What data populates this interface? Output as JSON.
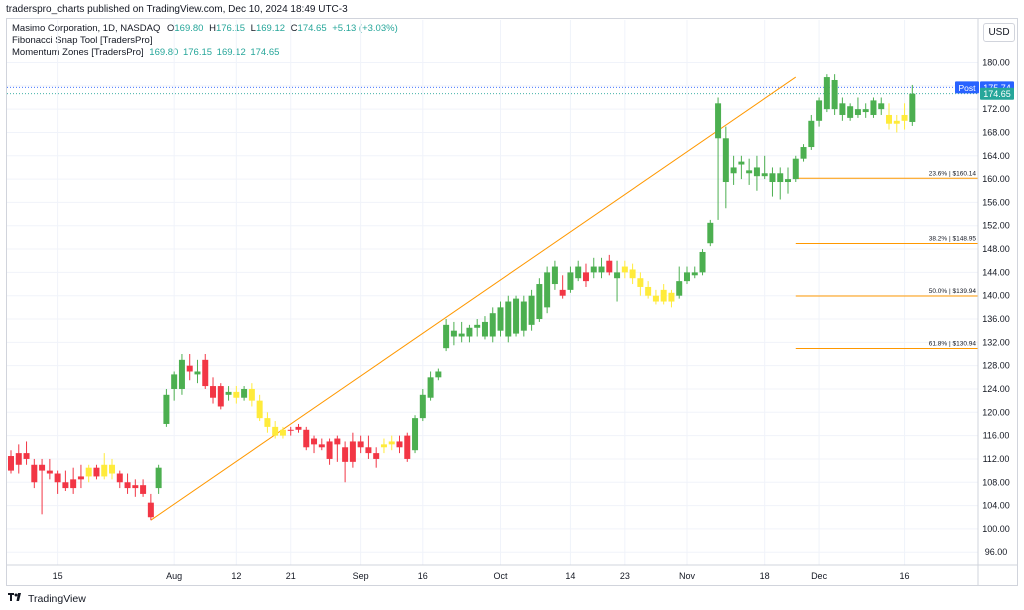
{
  "header": {
    "publish_text": "traderspro_charts published on TradingView.com, Dec 10, 2024 18:49 UTC-3"
  },
  "legend": {
    "symbol_line": "Masimo Corporation, 1D, NASDAQ",
    "o_label": "O",
    "o_value": "169.80",
    "h_label": "H",
    "h_value": "176.15",
    "l_label": "L",
    "l_value": "169.12",
    "c_label": "C",
    "c_value": "174.65",
    "change": "+5.13 (+3.03%)",
    "indicator1": "Fibonacci Snap Tool [TradersPro]",
    "indicator2": "Momentum Zones [TradersPro]",
    "indicator2_values": "169.80  176.15  169.12  174.65"
  },
  "currency": "USD",
  "footer": {
    "brand": "TradingView",
    "logo": "tradingview-logo"
  },
  "colors": {
    "up": "#4caf50",
    "down": "#f23645",
    "neutral": "#ffeb3b",
    "fib": "#ff9800",
    "post_bg": "#2962ff",
    "last_bg": "#26a69a"
  },
  "chart_data": {
    "type": "candlestick",
    "title": "Masimo Corporation, 1D, NASDAQ",
    "ylim": [
      94,
      184
    ],
    "y_ticks": [
      96,
      100,
      104,
      108,
      112,
      116,
      120,
      124,
      128,
      132,
      136,
      140,
      144,
      148,
      152,
      156,
      160,
      164,
      168,
      172,
      176,
      180
    ],
    "x_ticks": [
      "15",
      "Aug",
      "12",
      "21",
      "Sep",
      "16",
      "Oct",
      "14",
      "23",
      "Nov",
      "18",
      "Dec",
      "16"
    ],
    "x_tick_index": [
      6,
      21,
      29,
      36,
      45,
      53,
      63,
      72,
      79,
      87,
      97,
      104,
      115
    ],
    "price_labels": [
      {
        "label": "Post",
        "value": "175.74",
        "price": 175.74,
        "color": "#2962ff"
      },
      {
        "label": "",
        "value": "174.65",
        "price": 174.65,
        "color": "#26a69a"
      }
    ],
    "trend_line": {
      "from": {
        "i": 18,
        "price": 101.5
      },
      "to": {
        "i": 101,
        "price": 177.5
      }
    },
    "fib_levels": [
      {
        "label": "23.6% | $160.14",
        "price": 160.14
      },
      {
        "label": "38.2% | $148.95",
        "price": 148.95
      },
      {
        "label": "50.0% | $139.94",
        "price": 139.94
      },
      {
        "label": "61.8% | $130.94",
        "price": 130.94
      }
    ],
    "fib_start_index": 101,
    "candles": [
      {
        "o": 112.5,
        "h": 113.5,
        "l": 109.5,
        "c": 110,
        "z": "r"
      },
      {
        "o": 111,
        "h": 114.5,
        "l": 109.5,
        "c": 113,
        "z": "r"
      },
      {
        "o": 113,
        "h": 115,
        "l": 111,
        "c": 112,
        "z": "r"
      },
      {
        "o": 111,
        "h": 112,
        "l": 107,
        "c": 108,
        "z": "r"
      },
      {
        "o": 111,
        "h": 112,
        "l": 102.5,
        "c": 110,
        "z": "r"
      },
      {
        "o": 110,
        "h": 112,
        "l": 108.5,
        "c": 109.5,
        "z": "r"
      },
      {
        "o": 109.5,
        "h": 110,
        "l": 106,
        "c": 108,
        "z": "r"
      },
      {
        "o": 108,
        "h": 110,
        "l": 106.5,
        "c": 107,
        "z": "r"
      },
      {
        "o": 107,
        "h": 110.5,
        "l": 106,
        "c": 108.5,
        "z": "r"
      },
      {
        "o": 108.5,
        "h": 111,
        "l": 107,
        "c": 109,
        "z": "r"
      },
      {
        "o": 109,
        "h": 111,
        "l": 108,
        "c": 110.5,
        "z": "y"
      },
      {
        "o": 110.5,
        "h": 111,
        "l": 108.5,
        "c": 109,
        "z": "r"
      },
      {
        "o": 109,
        "h": 113,
        "l": 108.5,
        "c": 111,
        "z": "y"
      },
      {
        "o": 111,
        "h": 112,
        "l": 108.5,
        "c": 109.5,
        "z": "y"
      },
      {
        "o": 109.5,
        "h": 110,
        "l": 107,
        "c": 108,
        "z": "r"
      },
      {
        "o": 108,
        "h": 109.5,
        "l": 106,
        "c": 107,
        "z": "r"
      },
      {
        "o": 107,
        "h": 108.5,
        "l": 105.5,
        "c": 107.5,
        "z": "r"
      },
      {
        "o": 107.5,
        "h": 108.5,
        "l": 105.5,
        "c": 106,
        "z": "r"
      },
      {
        "o": 104.5,
        "h": 106,
        "l": 101.5,
        "c": 102,
        "z": "r"
      },
      {
        "o": 107,
        "h": 111,
        "l": 106,
        "c": 110.5,
        "z": "g"
      },
      {
        "o": 118,
        "h": 124,
        "l": 117.5,
        "c": 123,
        "z": "g"
      },
      {
        "o": 124,
        "h": 127,
        "l": 122,
        "c": 126.5,
        "z": "g"
      },
      {
        "o": 124,
        "h": 130,
        "l": 123,
        "c": 129,
        "z": "g"
      },
      {
        "o": 128,
        "h": 130,
        "l": 125.5,
        "c": 127,
        "z": "r"
      },
      {
        "o": 127,
        "h": 129,
        "l": 125,
        "c": 126.5,
        "z": "g"
      },
      {
        "o": 129,
        "h": 130,
        "l": 124,
        "c": 124.5,
        "z": "r"
      },
      {
        "o": 124.5,
        "h": 126,
        "l": 121.5,
        "c": 122.5,
        "z": "r"
      },
      {
        "o": 124.5,
        "h": 125,
        "l": 120.5,
        "c": 121,
        "z": "r"
      },
      {
        "o": 123,
        "h": 124.5,
        "l": 122,
        "c": 123.5,
        "z": "g"
      },
      {
        "o": 123.5,
        "h": 124.5,
        "l": 121.5,
        "c": 122.5,
        "z": "y"
      },
      {
        "o": 122.5,
        "h": 124.5,
        "l": 122,
        "c": 124,
        "z": "g"
      },
      {
        "o": 124,
        "h": 125,
        "l": 121,
        "c": 122,
        "z": "y"
      },
      {
        "o": 122,
        "h": 123,
        "l": 118.5,
        "c": 119,
        "z": "y"
      },
      {
        "o": 119,
        "h": 120,
        "l": 116.5,
        "c": 117.5,
        "z": "y"
      },
      {
        "o": 117.5,
        "h": 118.5,
        "l": 115.5,
        "c": 116,
        "z": "y"
      },
      {
        "o": 116,
        "h": 117.5,
        "l": 115.5,
        "c": 117,
        "z": "y"
      },
      {
        "o": 117,
        "h": 117.5,
        "l": 116,
        "c": 117,
        "z": "r"
      },
      {
        "o": 117,
        "h": 118,
        "l": 116.5,
        "c": 117.5,
        "z": "r"
      },
      {
        "o": 117,
        "h": 117.5,
        "l": 113.5,
        "c": 114,
        "z": "r"
      },
      {
        "o": 115.5,
        "h": 116,
        "l": 113,
        "c": 114.5,
        "z": "r"
      },
      {
        "o": 114.5,
        "h": 115.5,
        "l": 113.5,
        "c": 114,
        "z": "r"
      },
      {
        "o": 115,
        "h": 115.5,
        "l": 111,
        "c": 112,
        "z": "r"
      },
      {
        "o": 115.5,
        "h": 116,
        "l": 111.5,
        "c": 114.5,
        "z": "r"
      },
      {
        "o": 114,
        "h": 115,
        "l": 108,
        "c": 111.5,
        "z": "r"
      },
      {
        "o": 115,
        "h": 116.5,
        "l": 110.5,
        "c": 111.5,
        "z": "r"
      },
      {
        "o": 115,
        "h": 116,
        "l": 113,
        "c": 114,
        "z": "r"
      },
      {
        "o": 114,
        "h": 116,
        "l": 112,
        "c": 113,
        "z": "r"
      },
      {
        "o": 113,
        "h": 114,
        "l": 110.5,
        "c": 112,
        "z": "r"
      },
      {
        "o": 114,
        "h": 115.5,
        "l": 113,
        "c": 114.5,
        "z": "y"
      },
      {
        "o": 114.5,
        "h": 116,
        "l": 113.5,
        "c": 115,
        "z": "y"
      },
      {
        "o": 115,
        "h": 116,
        "l": 113,
        "c": 114,
        "z": "r"
      },
      {
        "o": 116,
        "h": 116.5,
        "l": 111.5,
        "c": 112,
        "z": "r"
      },
      {
        "o": 113.5,
        "h": 119.5,
        "l": 113,
        "c": 119,
        "z": "g"
      },
      {
        "o": 119,
        "h": 124,
        "l": 118.5,
        "c": 123,
        "z": "g"
      },
      {
        "o": 122.5,
        "h": 127,
        "l": 122,
        "c": 126,
        "z": "g"
      },
      {
        "o": 126,
        "h": 127.5,
        "l": 125.5,
        "c": 127,
        "z": "g"
      },
      {
        "o": 131,
        "h": 136,
        "l": 130.5,
        "c": 135,
        "z": "g"
      },
      {
        "o": 133,
        "h": 135.5,
        "l": 131.5,
        "c": 134,
        "z": "g"
      },
      {
        "o": 133,
        "h": 135.5,
        "l": 132,
        "c": 133.5,
        "z": "g"
      },
      {
        "o": 133,
        "h": 135,
        "l": 132,
        "c": 134.5,
        "z": "g"
      },
      {
        "o": 134.5,
        "h": 136,
        "l": 133,
        "c": 135,
        "z": "g"
      },
      {
        "o": 133,
        "h": 136.5,
        "l": 132.5,
        "c": 135.5,
        "z": "g"
      },
      {
        "o": 133,
        "h": 138,
        "l": 132,
        "c": 137,
        "z": "g"
      },
      {
        "o": 134,
        "h": 139,
        "l": 133,
        "c": 138,
        "z": "g"
      },
      {
        "o": 133,
        "h": 140,
        "l": 132,
        "c": 139,
        "z": "g"
      },
      {
        "o": 133.5,
        "h": 140,
        "l": 133,
        "c": 139.5,
        "z": "g"
      },
      {
        "o": 134,
        "h": 140,
        "l": 133,
        "c": 139,
        "z": "g"
      },
      {
        "o": 135,
        "h": 141,
        "l": 134,
        "c": 140,
        "z": "g"
      },
      {
        "o": 136,
        "h": 143,
        "l": 135.5,
        "c": 142,
        "z": "g"
      },
      {
        "o": 138,
        "h": 145,
        "l": 137,
        "c": 144,
        "z": "g"
      },
      {
        "o": 142,
        "h": 146,
        "l": 141,
        "c": 145,
        "z": "g"
      },
      {
        "o": 141,
        "h": 143.5,
        "l": 139.5,
        "c": 140,
        "z": "r"
      },
      {
        "o": 141,
        "h": 145,
        "l": 140.5,
        "c": 144,
        "z": "g"
      },
      {
        "o": 143,
        "h": 146,
        "l": 142.5,
        "c": 145,
        "z": "g"
      },
      {
        "o": 144,
        "h": 145.5,
        "l": 141.5,
        "c": 142.5,
        "z": "r"
      },
      {
        "o": 144,
        "h": 146.5,
        "l": 143,
        "c": 145,
        "z": "g"
      },
      {
        "o": 145,
        "h": 146.5,
        "l": 143,
        "c": 144,
        "z": "g"
      },
      {
        "o": 146,
        "h": 147,
        "l": 143.5,
        "c": 144,
        "z": "r"
      },
      {
        "o": 144,
        "h": 146,
        "l": 139,
        "c": 143,
        "z": "g"
      },
      {
        "o": 144,
        "h": 146,
        "l": 143,
        "c": 145,
        "z": "y"
      },
      {
        "o": 144.5,
        "h": 145.5,
        "l": 142,
        "c": 143,
        "z": "y"
      },
      {
        "o": 143,
        "h": 144,
        "l": 140,
        "c": 141.5,
        "z": "y"
      },
      {
        "o": 141.5,
        "h": 142.5,
        "l": 139.5,
        "c": 140,
        "z": "y"
      },
      {
        "o": 140,
        "h": 141,
        "l": 138.5,
        "c": 139,
        "z": "y"
      },
      {
        "o": 141,
        "h": 142,
        "l": 138.5,
        "c": 139,
        "z": "y"
      },
      {
        "o": 139,
        "h": 141,
        "l": 138,
        "c": 140.5,
        "z": "y"
      },
      {
        "o": 140,
        "h": 145,
        "l": 139.5,
        "c": 142.5,
        "z": "g"
      },
      {
        "o": 142.5,
        "h": 145,
        "l": 142,
        "c": 144,
        "z": "g"
      },
      {
        "o": 143.5,
        "h": 145,
        "l": 143,
        "c": 144,
        "z": "g"
      },
      {
        "o": 144,
        "h": 148,
        "l": 143.5,
        "c": 147.5,
        "z": "g"
      },
      {
        "o": 149,
        "h": 153,
        "l": 148.5,
        "c": 152.5,
        "z": "g"
      },
      {
        "o": 167,
        "h": 174,
        "l": 153,
        "c": 173,
        "z": "g"
      },
      {
        "o": 167,
        "h": 169,
        "l": 155,
        "c": 159.5,
        "z": "g"
      },
      {
        "o": 161,
        "h": 164,
        "l": 159,
        "c": 162,
        "z": "g"
      },
      {
        "o": 162.5,
        "h": 164,
        "l": 160,
        "c": 163,
        "z": "g"
      },
      {
        "o": 161,
        "h": 163.5,
        "l": 159,
        "c": 161.5,
        "z": "g"
      },
      {
        "o": 160.5,
        "h": 164,
        "l": 158,
        "c": 162,
        "z": "g"
      },
      {
        "o": 160.5,
        "h": 164,
        "l": 160,
        "c": 161,
        "z": "g"
      },
      {
        "o": 161,
        "h": 162,
        "l": 157,
        "c": 159.5,
        "z": "g"
      },
      {
        "o": 159.5,
        "h": 162,
        "l": 156.5,
        "c": 161,
        "z": "g"
      },
      {
        "o": 159.5,
        "h": 162,
        "l": 157.5,
        "c": 160,
        "z": "g"
      },
      {
        "o": 160,
        "h": 164,
        "l": 159.5,
        "c": 163.5,
        "z": "g"
      },
      {
        "o": 163.5,
        "h": 166,
        "l": 163,
        "c": 165.5,
        "z": "g"
      },
      {
        "o": 165.5,
        "h": 171,
        "l": 165,
        "c": 170,
        "z": "g"
      },
      {
        "o": 170,
        "h": 174,
        "l": 169,
        "c": 173.5,
        "z": "g"
      },
      {
        "o": 172,
        "h": 178,
        "l": 171.5,
        "c": 177.5,
        "z": "g"
      },
      {
        "o": 172,
        "h": 178,
        "l": 171,
        "c": 177,
        "z": "g"
      },
      {
        "o": 173,
        "h": 174,
        "l": 170,
        "c": 171,
        "z": "g"
      },
      {
        "o": 170.5,
        "h": 173,
        "l": 170,
        "c": 172.5,
        "z": "g"
      },
      {
        "o": 171,
        "h": 174,
        "l": 170.5,
        "c": 172,
        "z": "g"
      },
      {
        "o": 171.5,
        "h": 173,
        "l": 170.5,
        "c": 172,
        "z": "g"
      },
      {
        "o": 171,
        "h": 174,
        "l": 170.5,
        "c": 173.5,
        "z": "g"
      },
      {
        "o": 172,
        "h": 174,
        "l": 171,
        "c": 173,
        "z": "g"
      },
      {
        "o": 171,
        "h": 173,
        "l": 168.5,
        "c": 169.5,
        "z": "y"
      },
      {
        "o": 169.5,
        "h": 171,
        "l": 168,
        "c": 170,
        "z": "y"
      },
      {
        "o": 170,
        "h": 173,
        "l": 168.5,
        "c": 171,
        "z": "y"
      },
      {
        "o": 169.8,
        "h": 176.15,
        "l": 169.12,
        "c": 174.65,
        "z": "g"
      }
    ]
  }
}
